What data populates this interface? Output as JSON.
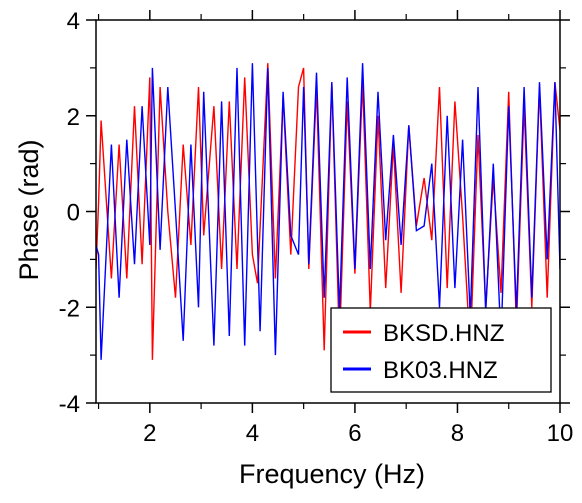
{
  "chart_data": {
    "type": "line",
    "title": "",
    "xlabel": "Frequency (Hz)",
    "ylabel": "Phase (rad)",
    "xlim": [
      0.95,
      10.0
    ],
    "ylim": [
      -4,
      4
    ],
    "xticks": [
      2,
      4,
      6,
      8,
      10
    ],
    "yticks": [
      -4,
      -2,
      0,
      2,
      4
    ],
    "xtick_labels": [
      "2",
      "4",
      "6",
      "8",
      "10"
    ],
    "ytick_labels": [
      "-4",
      "-2",
      "0",
      "2",
      "4"
    ],
    "grid": false,
    "legend_position": "bottom-right",
    "series": [
      {
        "name": "BKSD.HNZ",
        "color": "#ff0000",
        "x": [
          0.95,
          1.0,
          1.05,
          1.25,
          1.4,
          1.55,
          1.7,
          1.85,
          2.0,
          2.05,
          2.2,
          2.35,
          2.5,
          2.65,
          2.8,
          2.95,
          3.05,
          3.25,
          3.4,
          3.55,
          3.7,
          3.85,
          4.0,
          4.1,
          4.3,
          4.45,
          4.6,
          4.75,
          4.9,
          5.0,
          5.1,
          5.25,
          5.4,
          5.55,
          5.7,
          5.85,
          6.0,
          6.15,
          6.3,
          6.45,
          6.6,
          6.75,
          6.9,
          7.05,
          7.2,
          7.35,
          7.5,
          7.65,
          7.8,
          7.95,
          8.1,
          8.25,
          8.4,
          8.55,
          8.7,
          8.85,
          9.0,
          9.15,
          9.3,
          9.45,
          9.6,
          9.75,
          9.9,
          10.0
        ],
        "values": [
          -1.2,
          0.2,
          1.9,
          -1.4,
          1.4,
          -1.4,
          2.2,
          -1.1,
          2.8,
          -3.1,
          2.6,
          0.0,
          -1.8,
          1.4,
          -0.7,
          2.6,
          -0.5,
          2.2,
          -1.2,
          2.3,
          -1.2,
          2.8,
          -0.9,
          -1.5,
          3.1,
          -1.4,
          2.4,
          -0.9,
          2.6,
          3.0,
          -1.2,
          2.6,
          -2.9,
          2.7,
          -2.8,
          2.3,
          -1.3,
          2.7,
          -2.1,
          2.0,
          -1.6,
          1.4,
          -1.7,
          1.8,
          -0.3,
          0.7,
          -0.6,
          2.6,
          -1.6,
          2.3,
          -0.1,
          -2.9,
          1.6,
          -2.0,
          0.7,
          -1.7,
          2.5,
          -2.4,
          2.2,
          -2.0,
          2.6,
          -1.8,
          2.7,
          1.7
        ]
      },
      {
        "name": "BK03.HNZ",
        "color": "#0000ff",
        "x": [
          0.95,
          1.0,
          1.05,
          1.25,
          1.4,
          1.55,
          1.7,
          1.85,
          2.0,
          2.05,
          2.2,
          2.35,
          2.5,
          2.65,
          2.8,
          2.95,
          3.05,
          3.25,
          3.4,
          3.55,
          3.7,
          3.85,
          4.0,
          4.15,
          4.3,
          4.45,
          4.6,
          4.75,
          4.9,
          5.0,
          5.1,
          5.25,
          5.4,
          5.55,
          5.7,
          5.85,
          6.0,
          6.15,
          6.3,
          6.45,
          6.6,
          6.75,
          6.9,
          7.05,
          7.2,
          7.35,
          7.5,
          7.65,
          7.8,
          7.95,
          8.1,
          8.25,
          8.4,
          8.55,
          8.7,
          8.85,
          9.0,
          9.15,
          9.3,
          9.45,
          9.6,
          9.75,
          9.9,
          10.0
        ],
        "values": [
          -0.7,
          -0.9,
          -3.1,
          1.4,
          -1.8,
          1.5,
          -1.1,
          2.2,
          -0.7,
          3.0,
          -0.8,
          2.6,
          0.0,
          -2.7,
          1.4,
          -2.0,
          2.5,
          -2.8,
          2.3,
          -2.6,
          3.0,
          -2.8,
          3.1,
          -2.5,
          3.0,
          -3.0,
          2.5,
          -0.5,
          -0.9,
          2.6,
          -1.1,
          2.9,
          -1.8,
          2.7,
          -2.1,
          2.8,
          -1.2,
          3.1,
          -1.2,
          2.5,
          -0.6,
          1.6,
          -0.7,
          1.8,
          -0.4,
          -0.3,
          1.0,
          -2.0,
          2.0,
          -1.6,
          1.5,
          -2.2,
          2.6,
          -2.1,
          1.0,
          -2.7,
          2.2,
          -2.1,
          2.6,
          -1.8,
          2.7,
          -1.0,
          2.7,
          -1.2
        ]
      }
    ]
  }
}
